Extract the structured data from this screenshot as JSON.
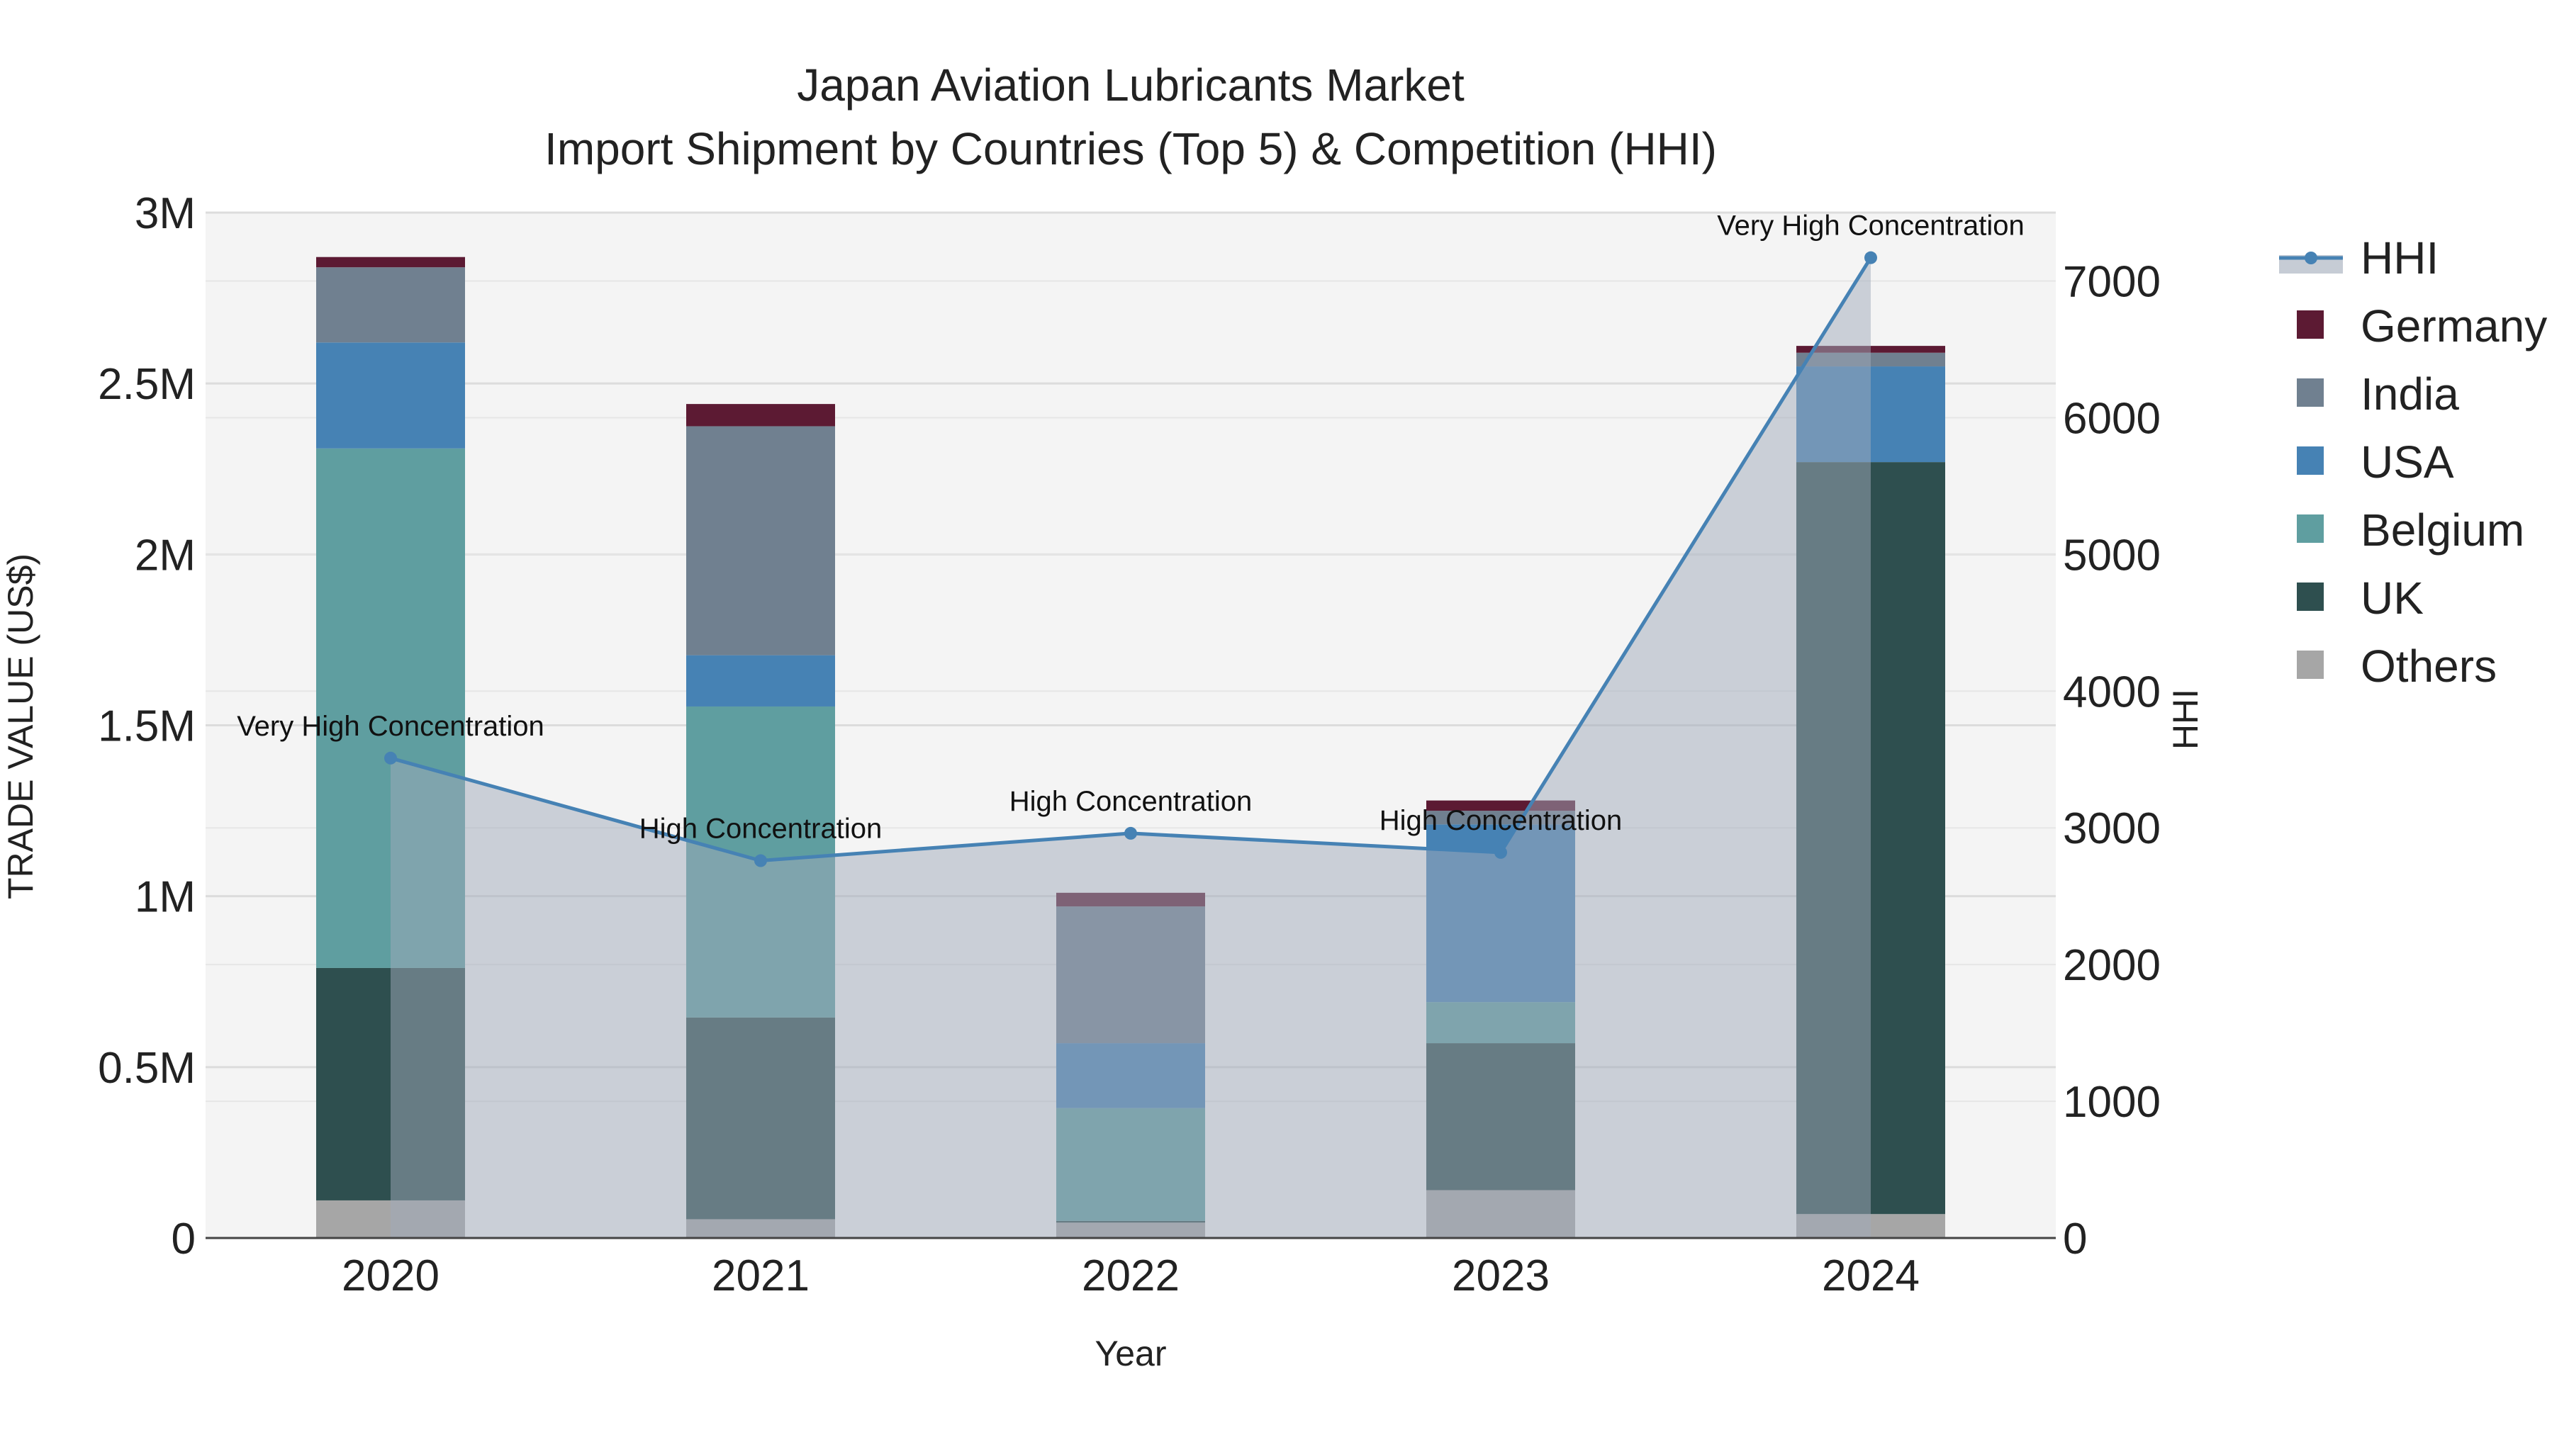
{
  "chart_data": {
    "type": "bar",
    "title_line1": "Japan Aviation Lubricants Market",
    "title_line2": "Import Shipment by Countries (Top 5) & Competition (HHI)",
    "xlabel": "Year",
    "ylabel": "TRADE VALUE (US$)",
    "y2label": "HHI",
    "categories": [
      "2020",
      "2021",
      "2022",
      "2023",
      "2024"
    ],
    "ylim": [
      0,
      3000000
    ],
    "y2lim": [
      0,
      7500
    ],
    "yticks": [
      {
        "value": 0,
        "label": "0"
      },
      {
        "value": 500000,
        "label": "0.5M"
      },
      {
        "value": 1000000,
        "label": "1M"
      },
      {
        "value": 1500000,
        "label": "1.5M"
      },
      {
        "value": 2000000,
        "label": "2M"
      },
      {
        "value": 2500000,
        "label": "2.5M"
      },
      {
        "value": 3000000,
        "label": "3M"
      }
    ],
    "y2ticks": [
      {
        "value": 0,
        "label": "0"
      },
      {
        "value": 1000,
        "label": "1000"
      },
      {
        "value": 2000,
        "label": "2000"
      },
      {
        "value": 3000,
        "label": "3000"
      },
      {
        "value": 4000,
        "label": "4000"
      },
      {
        "value": 5000,
        "label": "5000"
      },
      {
        "value": 6000,
        "label": "6000"
      },
      {
        "value": 7000,
        "label": "7000"
      }
    ],
    "series": [
      {
        "name": "Others",
        "color": "#a6a6a6",
        "values": [
          110000,
          55000,
          45000,
          140000,
          70000
        ]
      },
      {
        "name": "UK",
        "color": "#2e4f4f",
        "values": [
          680000,
          590000,
          5000,
          430000,
          2200000
        ]
      },
      {
        "name": "Belgium",
        "color": "#5f9ea0",
        "values": [
          1520000,
          910000,
          330000,
          120000,
          0
        ]
      },
      {
        "name": "USA",
        "color": "#4682b4",
        "values": [
          310000,
          150000,
          190000,
          520000,
          280000
        ]
      },
      {
        "name": "India",
        "color": "#708090",
        "values": [
          220000,
          670000,
          400000,
          40000,
          40000
        ]
      },
      {
        "name": "Germany",
        "color": "#5c1a33",
        "values": [
          30000,
          65000,
          40000,
          30000,
          20000
        ]
      }
    ],
    "hhi": {
      "name": "HHI",
      "color": "#4682b4",
      "values": [
        3510,
        2760,
        2960,
        2820,
        7170
      ],
      "labels": [
        "Very High Concentration",
        "High Concentration",
        "High Concentration",
        "High Concentration",
        "Very High Concentration"
      ]
    },
    "legend": [
      "HHI",
      "Germany",
      "India",
      "USA",
      "Belgium",
      "UK",
      "Others"
    ]
  }
}
